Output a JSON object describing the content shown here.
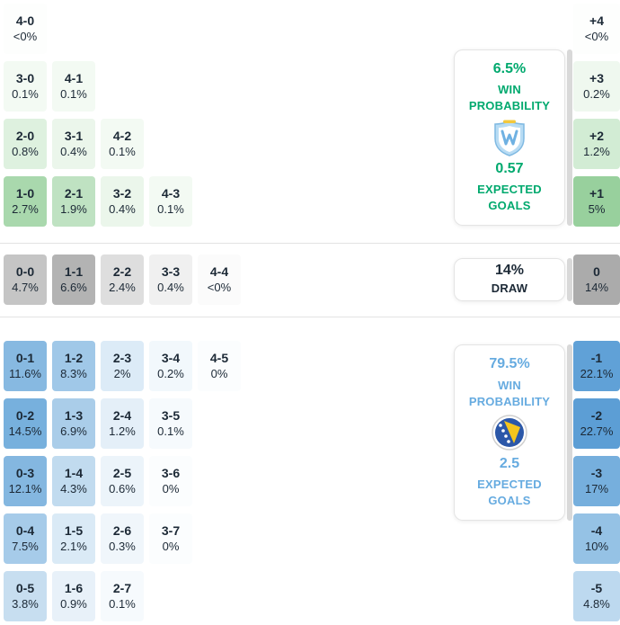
{
  "chart_data": {
    "type": "heatmap",
    "title": "Correct score probability matrix with win probability and expected goals",
    "legend_position": "right",
    "summary": {
      "home": {
        "win_pct": "6.5%",
        "win_label": "WIN PROBABILITY",
        "xg": "0.57",
        "xg_label": "EXPECTED GOALS",
        "accent": "#00a96e",
        "badge": "home-team-crest"
      },
      "draw": {
        "pct": "14%",
        "label": "DRAW",
        "accent": "#1c2936"
      },
      "away": {
        "win_pct": "79.5%",
        "win_label": "WIN PROBABILITY",
        "xg": "2.5",
        "xg_label": "EXPECTED GOALS",
        "accent": "#66abe0",
        "badge": "away-team-crest"
      }
    },
    "sections": {
      "home": {
        "rows": [
          [
            {
              "score": "4-0",
              "prob": "<0%",
              "bg": "#fdfefd"
            }
          ],
          [
            {
              "score": "3-0",
              "prob": "0.1%",
              "bg": "#f3faf3"
            },
            {
              "score": "4-1",
              "prob": "0.1%",
              "bg": "#f3faf3"
            }
          ],
          [
            {
              "score": "2-0",
              "prob": "0.8%",
              "bg": "#def1df"
            },
            {
              "score": "3-1",
              "prob": "0.4%",
              "bg": "#ebf6eb"
            },
            {
              "score": "4-2",
              "prob": "0.1%",
              "bg": "#f3faf3"
            }
          ],
          [
            {
              "score": "1-0",
              "prob": "2.7%",
              "bg": "#a9d8ad"
            },
            {
              "score": "2-1",
              "prob": "1.9%",
              "bg": "#bfe2c2"
            },
            {
              "score": "3-2",
              "prob": "0.4%",
              "bg": "#ebf6eb"
            },
            {
              "score": "4-3",
              "prob": "0.1%",
              "bg": "#f3faf3"
            }
          ]
        ]
      },
      "draw": {
        "rows": [
          [
            {
              "score": "0-0",
              "prob": "4.7%",
              "bg": "#c5c5c5"
            },
            {
              "score": "1-1",
              "prob": "6.6%",
              "bg": "#b3b3b3"
            },
            {
              "score": "2-2",
              "prob": "2.4%",
              "bg": "#dedede"
            },
            {
              "score": "3-3",
              "prob": "0.4%",
              "bg": "#f0f0f0"
            },
            {
              "score": "4-4",
              "prob": "<0%",
              "bg": "#fbfbfb"
            }
          ]
        ]
      },
      "away": {
        "rows": [
          [
            {
              "score": "0-1",
              "prob": "11.6%",
              "bg": "#87b9e1"
            },
            {
              "score": "1-2",
              "prob": "8.3%",
              "bg": "#a0c8e8"
            },
            {
              "score": "2-3",
              "prob": "2%",
              "bg": "#dcebf7"
            },
            {
              "score": "3-4",
              "prob": "0.2%",
              "bg": "#f2f8fc"
            },
            {
              "score": "4-5",
              "prob": "0%",
              "bg": "#fbfdfe"
            }
          ],
          [
            {
              "score": "0-2",
              "prob": "14.5%",
              "bg": "#77b0dd"
            },
            {
              "score": "1-3",
              "prob": "6.9%",
              "bg": "#aacde9"
            },
            {
              "score": "2-4",
              "prob": "1.2%",
              "bg": "#e4eff8"
            },
            {
              "score": "3-5",
              "prob": "0.1%",
              "bg": "#f6fafd"
            }
          ],
          [
            {
              "score": "0-3",
              "prob": "12.1%",
              "bg": "#84b7e0"
            },
            {
              "score": "1-4",
              "prob": "4.3%",
              "bg": "#c1dbef"
            },
            {
              "score": "2-5",
              "prob": "0.6%",
              "bg": "#ecf4fa"
            },
            {
              "score": "3-6",
              "prob": "0%",
              "bg": "#fbfdfe"
            }
          ],
          [
            {
              "score": "0-4",
              "prob": "7.5%",
              "bg": "#a6cbe9"
            },
            {
              "score": "1-5",
              "prob": "2.1%",
              "bg": "#daeaf6"
            },
            {
              "score": "2-6",
              "prob": "0.3%",
              "bg": "#f0f6fb"
            },
            {
              "score": "3-7",
              "prob": "0%",
              "bg": "#fbfdfe"
            }
          ],
          [
            {
              "score": "0-5",
              "prob": "3.8%",
              "bg": "#c7def0"
            },
            {
              "score": "1-6",
              "prob": "0.9%",
              "bg": "#e8f1f9"
            },
            {
              "score": "2-7",
              "prob": "0.1%",
              "bg": "#f6fafd"
            }
          ]
        ]
      }
    },
    "margins": {
      "home": [
        {
          "diff": "+4",
          "prob": "<0%",
          "bg": "#fdfefd"
        },
        {
          "diff": "+3",
          "prob": "0.2%",
          "bg": "#eff8ef"
        },
        {
          "diff": "+2",
          "prob": "1.2%",
          "bg": "#d2ecd4"
        },
        {
          "diff": "+1",
          "prob": "5%",
          "bg": "#98d09d"
        }
      ],
      "draw": [
        {
          "diff": "0",
          "prob": "14%",
          "bg": "#ababab"
        }
      ],
      "away": [
        {
          "diff": "-1",
          "prob": "22.1%",
          "bg": "#60a1d7"
        },
        {
          "diff": "-2",
          "prob": "22.7%",
          "bg": "#5c9ed5"
        },
        {
          "diff": "-3",
          "prob": "17%",
          "bg": "#76afdd"
        },
        {
          "diff": "-4",
          "prob": "10%",
          "bg": "#95c2e5"
        },
        {
          "diff": "-5",
          "prob": "4.8%",
          "bg": "#bdd9ef"
        }
      ]
    }
  }
}
